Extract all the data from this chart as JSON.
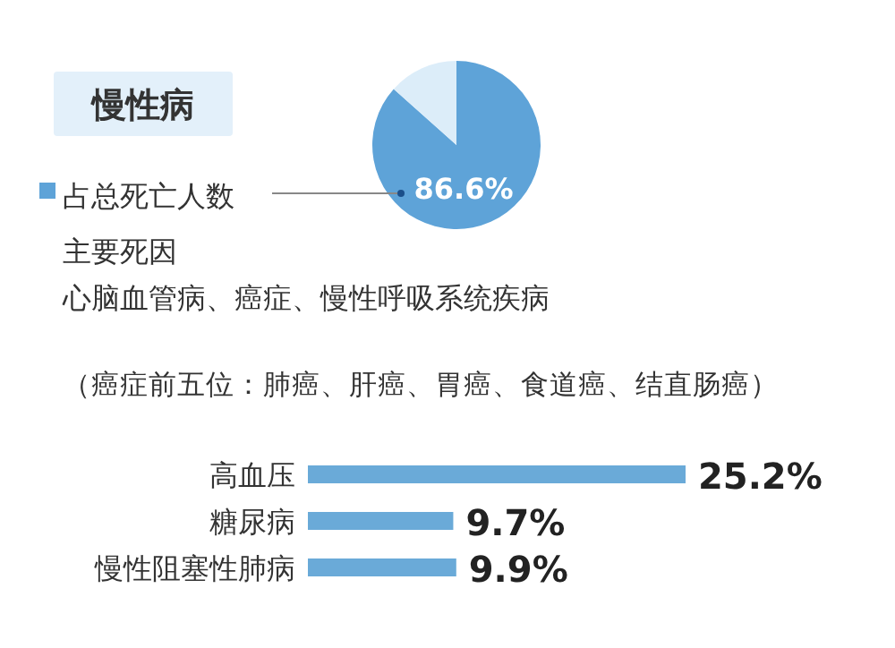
{
  "chart_data": [
    {
      "type": "pie",
      "title": "慢性病",
      "categories": [
        "占总死亡人数",
        null
      ],
      "values": [
        86.6,
        13.4
      ],
      "colors": [
        "#5ea3d8",
        "#dcedf9"
      ],
      "value_labels": [
        "86.6%",
        null
      ],
      "annotations": [
        "主要死因",
        "心脑血管病、癌症、慢性呼吸系统疾病",
        "（癌症前五位：肺癌、肝癌、胃癌、食道癌、结直肠癌）"
      ]
    },
    {
      "type": "bar",
      "orientation": "horizontal",
      "categories": [
        "高血压",
        "糖尿病",
        "慢性阻塞性肺病"
      ],
      "values": [
        25.2,
        9.7,
        9.9
      ],
      "color": "#6aaad8",
      "value_labels": [
        "25.2%",
        "9.7%",
        "9.9%"
      ]
    }
  ]
}
